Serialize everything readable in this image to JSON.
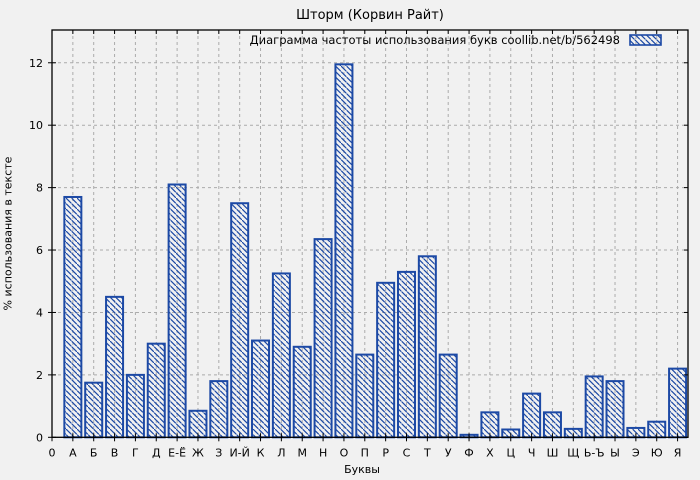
{
  "chart_data": {
    "type": "bar",
    "title": "Шторм (Корвин Райт)",
    "legend": "Диаграмма частоты использования букв coollib.net/b/562498",
    "xlabel": "Буквы",
    "ylabel": "% использования в тексте",
    "origin_label": "0",
    "categories": [
      "А",
      "Б",
      "В",
      "Г",
      "Д",
      "Е-Ё",
      "Ж",
      "З",
      "И-Й",
      "К",
      "Л",
      "М",
      "Н",
      "О",
      "П",
      "Р",
      "С",
      "Т",
      "У",
      "Ф",
      "Х",
      "Ц",
      "Ч",
      "Ш",
      "Щ",
      "Ь-Ъ",
      "Ы",
      "Э",
      "Ю",
      "Я"
    ],
    "values": [
      7.7,
      1.75,
      4.5,
      2.0,
      3.0,
      8.1,
      0.85,
      1.8,
      7.5,
      3.1,
      5.25,
      2.9,
      6.35,
      11.95,
      2.65,
      4.95,
      5.3,
      5.8,
      2.65,
      0.08,
      0.8,
      0.25,
      1.4,
      0.8,
      0.27,
      1.95,
      1.8,
      0.3,
      0.5,
      2.2
    ],
    "yticks": [
      0,
      2,
      4,
      6,
      8,
      10,
      12
    ],
    "ylim": [
      0,
      13.05
    ],
    "grid": true,
    "legend_position": "top-right-inside",
    "hatch_style": "backslash-diagonal",
    "colors": {
      "bar": "#1c49a5",
      "grid": "#ababab",
      "axis": "#000000",
      "background": "#f1f1f1",
      "text": "#000000"
    }
  }
}
